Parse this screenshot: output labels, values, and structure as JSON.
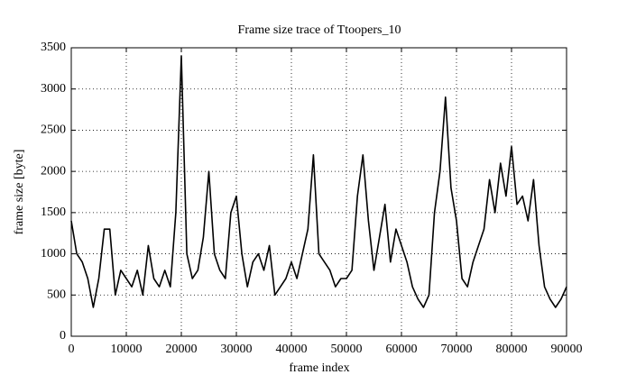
{
  "chart_data": {
    "type": "line",
    "title": "Frame size trace of Ttoopers_10",
    "x_label": "frame index",
    "y_label": "frame size [byte]",
    "x": [
      0,
      1000,
      2000,
      3000,
      4000,
      5000,
      6000,
      7000,
      8000,
      9000,
      10000,
      11000,
      12000,
      13000,
      14000,
      15000,
      16000,
      17000,
      18000,
      19000,
      20000,
      21000,
      22000,
      23000,
      24000,
      25000,
      26000,
      27000,
      28000,
      29000,
      30000,
      31000,
      32000,
      33000,
      34000,
      35000,
      36000,
      37000,
      38000,
      39000,
      40000,
      41000,
      42000,
      43000,
      44000,
      45000,
      46000,
      47000,
      48000,
      49000,
      50000,
      51000,
      52000,
      53000,
      54000,
      55000,
      56000,
      57000,
      58000,
      59000,
      60000,
      61000,
      62000,
      63000,
      64000,
      65000,
      66000,
      67000,
      68000,
      69000,
      70000,
      71000,
      72000,
      73000,
      74000,
      75000,
      76000,
      77000,
      78000,
      79000,
      80000,
      81000,
      82000,
      83000,
      84000,
      85000,
      86000,
      87000,
      88000,
      89000,
      90000
    ],
    "series": [
      {
        "color": "#000000",
        "values": [
          1400,
          1000,
          900,
          700,
          350,
          700,
          1300,
          1300,
          500,
          800,
          700,
          600,
          800,
          500,
          1100,
          700,
          600,
          800,
          600,
          1500,
          3400,
          1000,
          700,
          800,
          1200,
          2000,
          1000,
          800,
          700,
          1500,
          1700,
          1000,
          600,
          900,
          1000,
          800,
          1100,
          500,
          600,
          700,
          900,
          700,
          1000,
          1300,
          2200,
          1000,
          900,
          800,
          600,
          700,
          700,
          800,
          1700,
          2200,
          1400,
          800,
          1200,
          1600,
          900,
          1300,
          1100,
          900,
          600,
          450,
          350,
          500,
          1500,
          2000,
          2900,
          1800,
          1400,
          700,
          600,
          900,
          1100,
          1300,
          1900,
          1500,
          2100,
          1700,
          2300,
          1600,
          1700,
          1400,
          1900,
          1100,
          600,
          450,
          350,
          450,
          600
        ]
      }
    ],
    "xlim": [
      0,
      90000
    ],
    "ylim": [
      0,
      3500
    ],
    "xticks": [
      0,
      10000,
      20000,
      30000,
      40000,
      50000,
      60000,
      70000,
      80000,
      90000
    ],
    "yticks": [
      0,
      500,
      1000,
      1500,
      2000,
      2500,
      3000,
      3500
    ],
    "grid": true
  }
}
